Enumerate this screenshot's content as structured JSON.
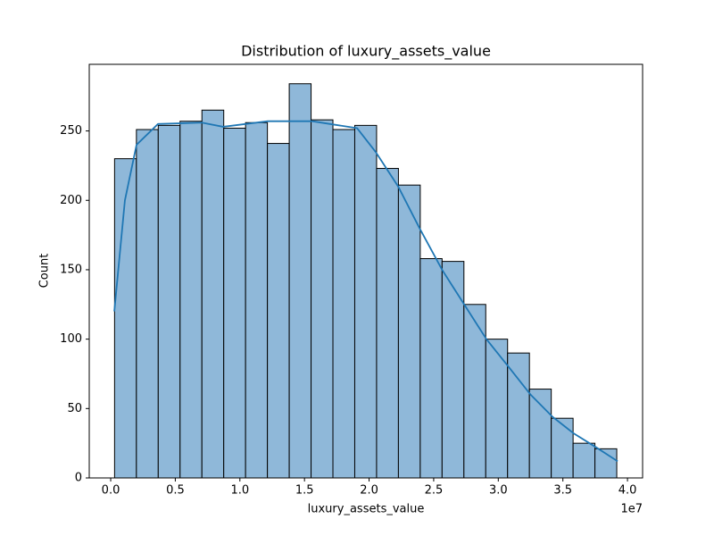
{
  "chart_data": {
    "type": "histogram",
    "title": "Distribution of luxury_assets_value",
    "x_label": "luxury_assets_value",
    "y_label": "Count",
    "x_offset_label": "1e7",
    "color": "#8fb8d9",
    "edge_color": "#000000",
    "bins": [
      300000,
      1990000,
      3680000,
      5370000,
      7060000,
      8750000,
      10440000,
      12130000,
      13820000,
      15510000,
      17200000,
      18890000,
      20580000,
      22270000,
      23960000,
      25650000,
      27340000,
      29030000,
      30720000,
      32410000,
      34100000,
      35790000,
      37480000,
      39170000
    ],
    "values": [
      230,
      251,
      254,
      257,
      265,
      252,
      256,
      241,
      284,
      258,
      251,
      254,
      223,
      211,
      158,
      156,
      125,
      100,
      90,
      64,
      43,
      25,
      21
    ],
    "kde": {
      "color": "#1f77b4",
      "x": [
        280000,
        1100000,
        2000000,
        3660000,
        7050000,
        8700000,
        12160000,
        15600000,
        19070000,
        20500000,
        22250000,
        23900000,
        25650000,
        27360000,
        29080000,
        30800000,
        32500000,
        34200000,
        35850000,
        37580000,
        39240000
      ],
      "values": [
        120,
        200,
        240,
        255,
        256,
        253,
        257,
        257,
        252,
        235,
        210,
        180,
        150,
        125,
        100,
        80,
        60,
        44,
        32,
        22,
        12
      ]
    },
    "xlim": [
      -1660000,
      41170000
    ],
    "ylim": [
      0,
      298
    ],
    "xticks": [
      {
        "value": 0,
        "label": "0.0"
      },
      {
        "value": 5000000,
        "label": "0.5"
      },
      {
        "value": 10000000,
        "label": "1.0"
      },
      {
        "value": 15000000,
        "label": "1.5"
      },
      {
        "value": 20000000,
        "label": "2.0"
      },
      {
        "value": 25000000,
        "label": "2.5"
      },
      {
        "value": 30000000,
        "label": "3.0"
      },
      {
        "value": 35000000,
        "label": "3.5"
      },
      {
        "value": 40000000,
        "label": "4.0"
      }
    ],
    "yticks": [
      0,
      50,
      100,
      150,
      200,
      250
    ]
  }
}
